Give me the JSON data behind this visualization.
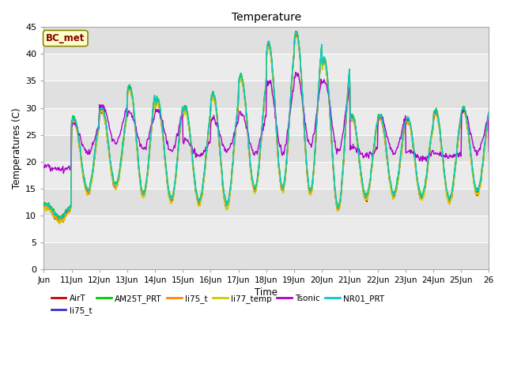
{
  "title": "Temperature",
  "xlabel": "Time",
  "ylabel": "Temperatures (C)",
  "ylim": [
    0,
    45
  ],
  "annotation": "BC_met",
  "legend_labels": [
    "AirT",
    "li75_t",
    "AM25T_PRT",
    "li75_t",
    "li77_temp",
    "Tsonic",
    "NR01_PRT"
  ],
  "legend_colors": [
    "#cc0000",
    "#3333cc",
    "#00cc00",
    "#ff8800",
    "#cccc00",
    "#aa00cc",
    "#00cccc"
  ],
  "xtick_labels": [
    "Jun",
    "11Jun",
    "12Jun",
    "13Jun",
    "14Jun",
    "15Jun",
    "16Jun",
    "17Jun",
    "18Jun",
    "19Jun",
    "20Jun",
    "21Jun",
    "22Jun",
    "23Jun",
    "24Jun",
    "25Jun",
    "26"
  ],
  "xtick_positions": [
    0,
    1,
    2,
    3,
    4,
    5,
    6,
    7,
    8,
    9,
    10,
    11,
    12,
    13,
    14,
    15,
    16
  ],
  "band_colors": [
    "#e0e0e0",
    "#ebebeb"
  ]
}
